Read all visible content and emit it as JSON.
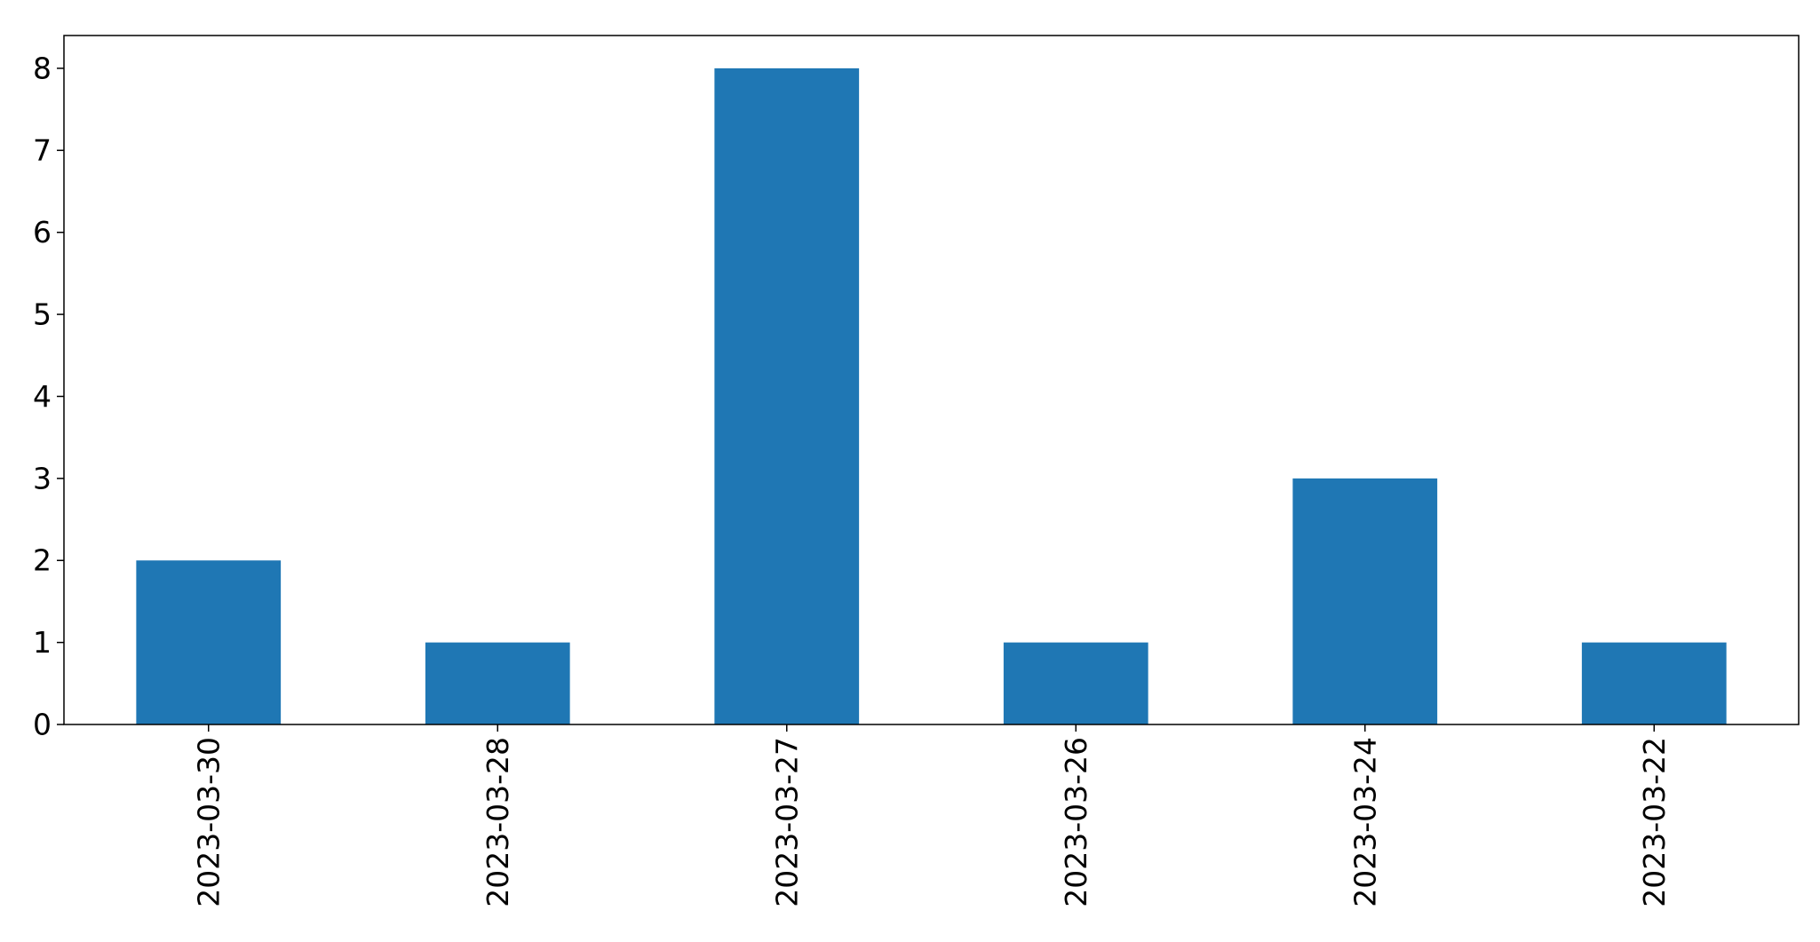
{
  "chart_data": {
    "type": "bar",
    "categories": [
      "2023-03-30",
      "2023-03-28",
      "2023-03-27",
      "2023-03-26",
      "2023-03-24",
      "2023-03-22"
    ],
    "values": [
      2,
      1,
      8,
      1,
      3,
      1
    ],
    "title": "",
    "xlabel": "",
    "ylabel": "",
    "ylim": [
      0,
      8.4
    ],
    "yticks": [
      0,
      1,
      2,
      3,
      4,
      5,
      6,
      7,
      8
    ],
    "grid": false,
    "legend": "none",
    "bar_color": "#1f77b4",
    "x_tick_rotation": "vertical"
  }
}
